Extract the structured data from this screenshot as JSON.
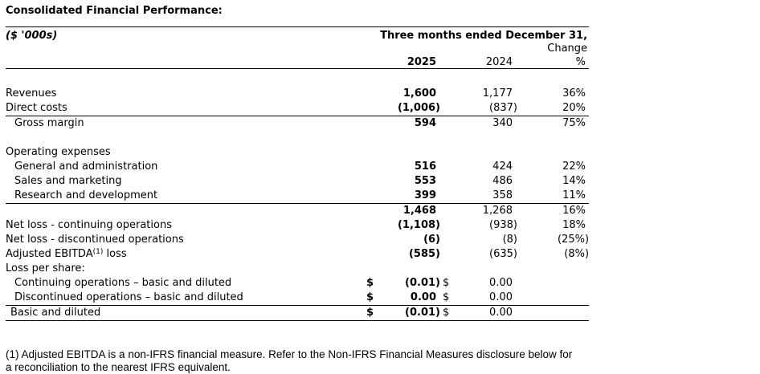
{
  "title": "Consolidated Financial Performance:",
  "table": {
    "unit_label": "($ '000s)",
    "period_header": "Three months ended December 31,",
    "change_label": "Change",
    "col_2025": "2025",
    "col_2024": "2024",
    "pct_label": "%",
    "rows": [
      {
        "type": "spacer"
      },
      {
        "label": "Revenues",
        "indent": 0,
        "v2025": "1,600",
        "v2024": "1,177",
        "change": "36%"
      },
      {
        "label": "Direct costs",
        "indent": 0,
        "v2025": "(1,006)",
        "v2024": "(837)",
        "change": "20%",
        "rule_below": true
      },
      {
        "label": "Gross margin",
        "indent": 1,
        "v2025": "594",
        "v2024": "340",
        "change": "75%"
      },
      {
        "type": "spacer"
      },
      {
        "label": "Operating expenses",
        "indent": 0
      },
      {
        "label": "General and administration",
        "indent": 1,
        "v2025": "516",
        "v2024": "424",
        "change": "22%"
      },
      {
        "label": "Sales and marketing",
        "indent": 1,
        "v2025": "553",
        "v2024": "486",
        "change": "14%"
      },
      {
        "label": "Research and development",
        "indent": 1,
        "v2025": "399",
        "v2024": "358",
        "change": "11%",
        "rule_below": true
      },
      {
        "label": "",
        "indent": 0,
        "v2025": "1,468",
        "v2024": "1,268",
        "change": "16%"
      },
      {
        "label": "Net loss - continuing operations",
        "indent": 0,
        "v2025": "(1,108)",
        "v2024": "(938)",
        "change": "18%"
      },
      {
        "label": "Net loss - discontinued operations",
        "indent": 0,
        "v2025": "(6)",
        "v2024": "(8)",
        "change": "(25%)"
      },
      {
        "label": "Adjusted EBITDA",
        "label_sup": "(1)",
        "label_after": " loss",
        "indent": 0,
        "v2025": "(585)",
        "v2024": "(635)",
        "change": "(8%)"
      },
      {
        "label": "Loss per share:",
        "indent": 0
      },
      {
        "label": "Continuing operations – basic and diluted",
        "indent": 1,
        "d2025": "$",
        "v2025": "(0.01)",
        "d2024": "$",
        "v2024": "0.00"
      },
      {
        "label": "Discontinued operations – basic and diluted",
        "indent": 1,
        "d2025": "$",
        "v2025": "0.00",
        "d2024": "$",
        "v2024": "0.00",
        "rule_below": true
      },
      {
        "label": "Basic and diluted",
        "indent": 2,
        "d2025": "$",
        "v2025": "(0.01)",
        "d2024": "$",
        "v2024": "0.00",
        "rule_below": true
      }
    ]
  },
  "footnote": "(1) Adjusted EBITDA is a non-IFRS financial measure. Refer to the Non-IFRS Financial Measures disclosure below for a reconciliation to the nearest IFRS equivalent."
}
